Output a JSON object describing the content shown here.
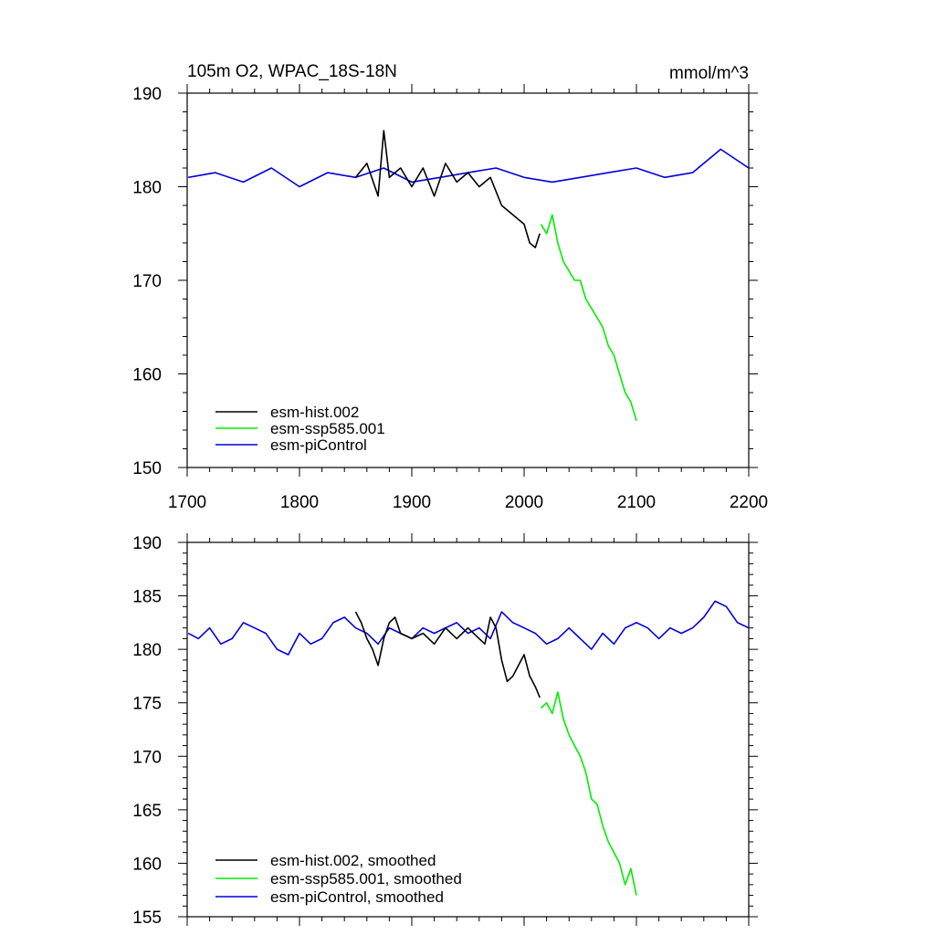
{
  "colors": {
    "hist": "#000000",
    "ssp": "#00ee00",
    "pic": "#0000dd"
  },
  "chart_data": [
    {
      "type": "line",
      "title": "105m O2, WPAC_18S-18N",
      "units": "mmol/m^3",
      "xlim": [
        1700,
        2200
      ],
      "ylim": [
        150,
        190
      ],
      "xticks": [
        "1700",
        "1800",
        "1900",
        "2000",
        "2100",
        "2200"
      ],
      "yticks": [
        "150",
        "160",
        "170",
        "180",
        "190"
      ],
      "legend_position": "bottom-left",
      "series": [
        {
          "name": "esm-hist.002",
          "color": "#000000",
          "x": [
            1850,
            1860,
            1870,
            1875,
            1880,
            1890,
            1900,
            1910,
            1920,
            1930,
            1940,
            1950,
            1960,
            1970,
            1980,
            1990,
            2000,
            2005,
            2010,
            2014
          ],
          "y": [
            181,
            182.5,
            179,
            186,
            181,
            182,
            180,
            182,
            179,
            182.5,
            180.5,
            181.5,
            180,
            181,
            178,
            177,
            176,
            174,
            173.5,
            175
          ]
        },
        {
          "name": "esm-ssp585.001",
          "color": "#00ee00",
          "x": [
            2015,
            2020,
            2025,
            2030,
            2035,
            2040,
            2045,
            2050,
            2055,
            2060,
            2065,
            2070,
            2075,
            2080,
            2085,
            2090,
            2095,
            2100
          ],
          "y": [
            176,
            175,
            177,
            174,
            172,
            171,
            170,
            170,
            168,
            167,
            166,
            165,
            163,
            162,
            160,
            158,
            157,
            155
          ]
        },
        {
          "name": "esm-piControl",
          "color": "#0000dd",
          "x": [
            1701,
            1725,
            1750,
            1775,
            1800,
            1825,
            1850,
            1875,
            1900,
            1925,
            1950,
            1975,
            2000,
            2025,
            2050,
            2075,
            2100,
            2125,
            2150,
            2175,
            2200
          ],
          "y": [
            181,
            181.5,
            180.5,
            182,
            180,
            181.5,
            181,
            182,
            180.5,
            181,
            181.5,
            182,
            181,
            180.5,
            181,
            181.5,
            182,
            181,
            181.5,
            184,
            182
          ]
        }
      ]
    },
    {
      "type": "line",
      "title": "",
      "xlim": [
        1700,
        2200
      ],
      "ylim": [
        155,
        190
      ],
      "yticks": [
        "155",
        "160",
        "165",
        "170",
        "175",
        "180",
        "185",
        "190"
      ],
      "legend_position": "bottom-left",
      "series": [
        {
          "name": "esm-hist.002, smoothed",
          "color": "#000000",
          "x": [
            1850,
            1855,
            1860,
            1865,
            1870,
            1875,
            1880,
            1885,
            1890,
            1900,
            1910,
            1920,
            1930,
            1940,
            1950,
            1960,
            1965,
            1970,
            1975,
            1980,
            1985,
            1990,
            1995,
            2000,
            2005,
            2010,
            2014
          ],
          "y": [
            183.5,
            182.5,
            181,
            180,
            178.5,
            181,
            182.5,
            183,
            181.5,
            181,
            181.5,
            180.5,
            182,
            181,
            182,
            181,
            180.5,
            183,
            182,
            179,
            177,
            177.5,
            178.5,
            179.5,
            177.5,
            176.5,
            175.5
          ]
        },
        {
          "name": "esm-ssp585.001, smoothed",
          "color": "#00ee00",
          "x": [
            2015,
            2020,
            2025,
            2030,
            2035,
            2040,
            2045,
            2050,
            2055,
            2060,
            2065,
            2070,
            2075,
            2080,
            2085,
            2090,
            2095,
            2100
          ],
          "y": [
            174.5,
            175,
            174,
            176,
            173.5,
            172,
            171,
            170,
            168.5,
            166,
            165.5,
            163.5,
            162,
            161,
            160,
            158,
            159.5,
            157
          ]
        },
        {
          "name": "esm-piControl, smoothed",
          "color": "#0000dd",
          "x": [
            1701,
            1710,
            1720,
            1730,
            1740,
            1750,
            1760,
            1770,
            1780,
            1790,
            1800,
            1810,
            1820,
            1830,
            1840,
            1850,
            1860,
            1870,
            1880,
            1890,
            1900,
            1910,
            1920,
            1930,
            1940,
            1950,
            1960,
            1970,
            1980,
            1990,
            2000,
            2010,
            2020,
            2030,
            2040,
            2050,
            2060,
            2070,
            2080,
            2090,
            2100,
            2110,
            2120,
            2130,
            2140,
            2150,
            2160,
            2170,
            2180,
            2190,
            2200
          ],
          "y": [
            181.5,
            181,
            182,
            180.5,
            181,
            182.5,
            182,
            181.5,
            180,
            179.5,
            181.5,
            180.5,
            181,
            182.5,
            183,
            182,
            181.5,
            180.5,
            182,
            181.5,
            181,
            182,
            181.5,
            182,
            182.5,
            181.5,
            182,
            181,
            183.5,
            182.5,
            182,
            181.5,
            180.5,
            181,
            182,
            181,
            180,
            181.5,
            180.5,
            182,
            182.5,
            182,
            181,
            182,
            181.5,
            182,
            183,
            184.5,
            184,
            182.5,
            182
          ]
        }
      ]
    }
  ]
}
